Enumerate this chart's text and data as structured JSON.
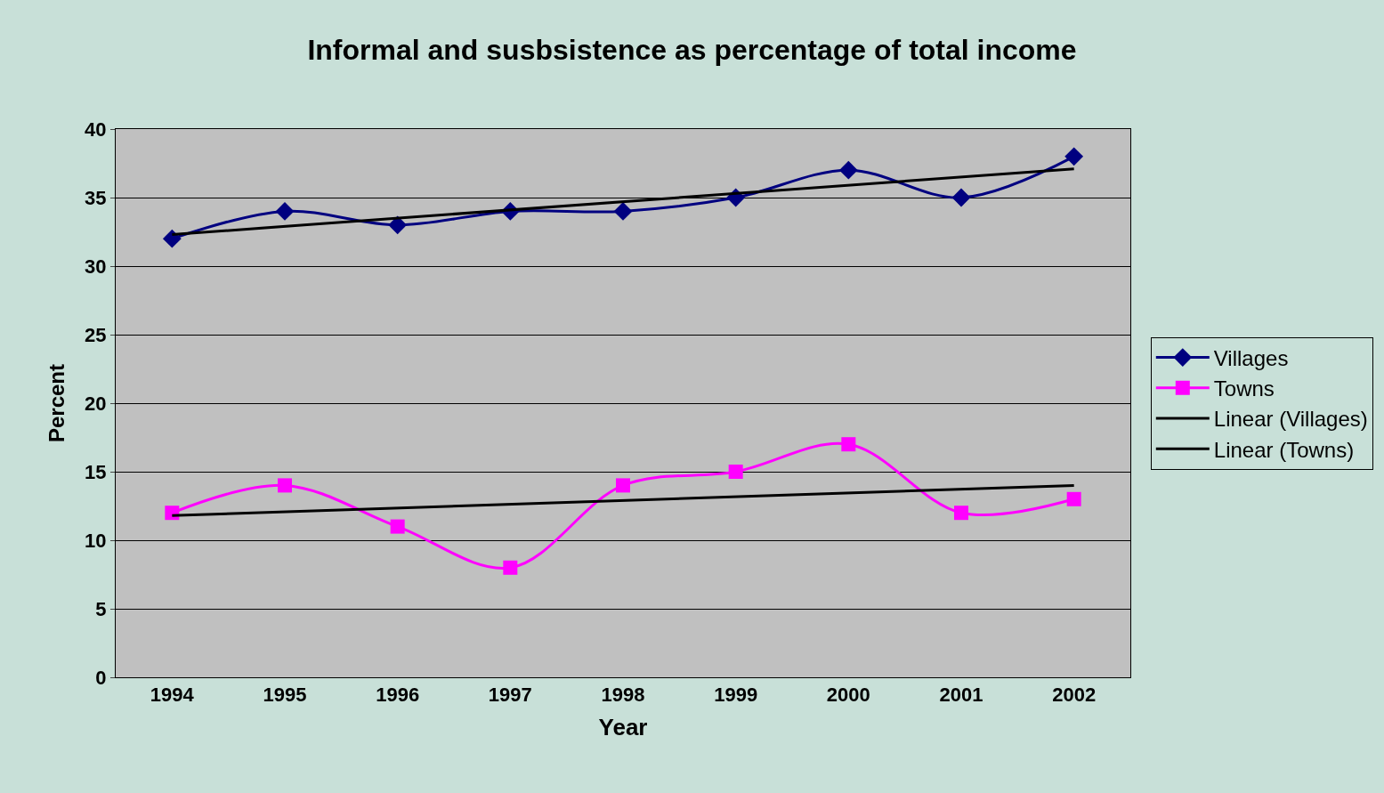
{
  "chart_data": {
    "type": "line",
    "title": "Informal and susbsistence as percentage of total income",
    "xlabel": "Year",
    "ylabel": "Percent",
    "categories": [
      "1994",
      "1995",
      "1996",
      "1997",
      "1998",
      "1999",
      "2000",
      "2001",
      "2002"
    ],
    "series": [
      {
        "name": "Villages",
        "color": "#000080",
        "marker": "diamond",
        "values": [
          32,
          34,
          33,
          34,
          34,
          35,
          37,
          35,
          38
        ]
      },
      {
        "name": "Towns",
        "color": "#ff00ff",
        "marker": "square",
        "values": [
          12,
          14,
          11,
          8,
          14,
          15,
          17,
          12,
          13
        ]
      },
      {
        "name": "Linear (Villages)",
        "color": "#000000",
        "marker": "none",
        "values": [
          32.3,
          null,
          null,
          null,
          null,
          null,
          null,
          null,
          37.1
        ]
      },
      {
        "name": "Linear (Towns)",
        "color": "#000000",
        "marker": "none",
        "values": [
          11.8,
          null,
          null,
          null,
          null,
          null,
          null,
          null,
          14.0
        ]
      }
    ],
    "ylim": [
      0,
      40
    ],
    "yticks": [
      0,
      5,
      10,
      15,
      20,
      25,
      30,
      35,
      40
    ],
    "grid": "y",
    "legend": "right"
  }
}
